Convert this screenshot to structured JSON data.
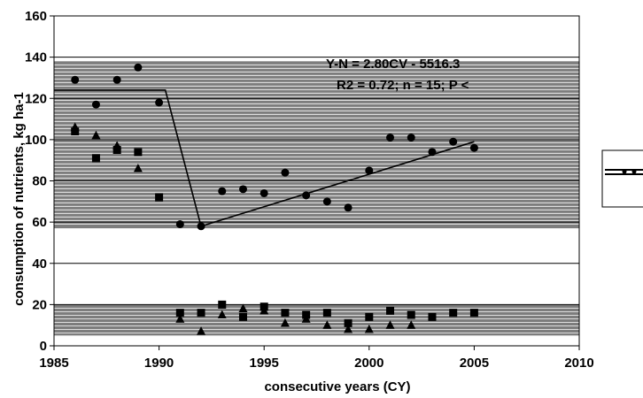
{
  "chart_data": {
    "type": "scatter",
    "title": "",
    "xlabel": "consecutive years (CY)",
    "ylabel": "consumption of nutrients, kg ha-1",
    "xlim": [
      1985,
      2010
    ],
    "ylim": [
      0,
      160
    ],
    "x_ticks": [
      "1985",
      "1990",
      "1995",
      "2000",
      "2005",
      "2010"
    ],
    "y_ticks": [
      "0",
      "20",
      "40",
      "60",
      "80",
      "100",
      "120",
      "140",
      "160"
    ],
    "bands": [
      {
        "from": 57,
        "to": 138,
        "color": "#7d7d7d"
      },
      {
        "from": 5,
        "to": 20,
        "color": "#7d7d7d"
      }
    ],
    "grid": true,
    "legend": "right (clipped)",
    "annotation": {
      "line1": "Y-N = 2.80CV - 5516.3",
      "line2": "R2 = 0.72; n = 15; P <"
    },
    "series": [
      {
        "marker": "circle",
        "x": [
          1986,
          1987,
          1988,
          1989,
          1990,
          1991,
          1992,
          1993,
          1994,
          1995,
          1996,
          1997,
          1998,
          1999,
          2000,
          2001,
          2002,
          2003,
          2004,
          2005
        ],
        "y": [
          129,
          117,
          129,
          135,
          118,
          59,
          58,
          75,
          76,
          74,
          84,
          73,
          70,
          67,
          85,
          101,
          101,
          94,
          99,
          96
        ]
      },
      {
        "marker": "square",
        "x": [
          1986,
          1987,
          1988,
          1989,
          1990,
          1991,
          1992,
          1993,
          1994,
          1995,
          1996,
          1997,
          1998,
          1999,
          2000,
          2001,
          2002,
          2003,
          2004,
          2005
        ],
        "y": [
          104,
          91,
          95,
          94,
          72,
          16,
          16,
          20,
          14,
          19,
          16,
          15,
          16,
          11,
          14,
          17,
          15,
          14,
          16,
          16
        ]
      },
      {
        "marker": "triangle",
        "x": [
          1986,
          1987,
          1988,
          1989,
          1991,
          1992,
          1993,
          1994,
          1995,
          1996,
          1997,
          1998,
          1999,
          2000,
          2001,
          2002
        ],
        "y": [
          106,
          102,
          97,
          86,
          13,
          7,
          15,
          18,
          17,
          11,
          13,
          10,
          8,
          8,
          10,
          10
        ]
      }
    ],
    "trend_line": {
      "x": [
        1985,
        1990.3,
        1992,
        2005
      ],
      "y": [
        124,
        124,
        58,
        99
      ]
    }
  }
}
